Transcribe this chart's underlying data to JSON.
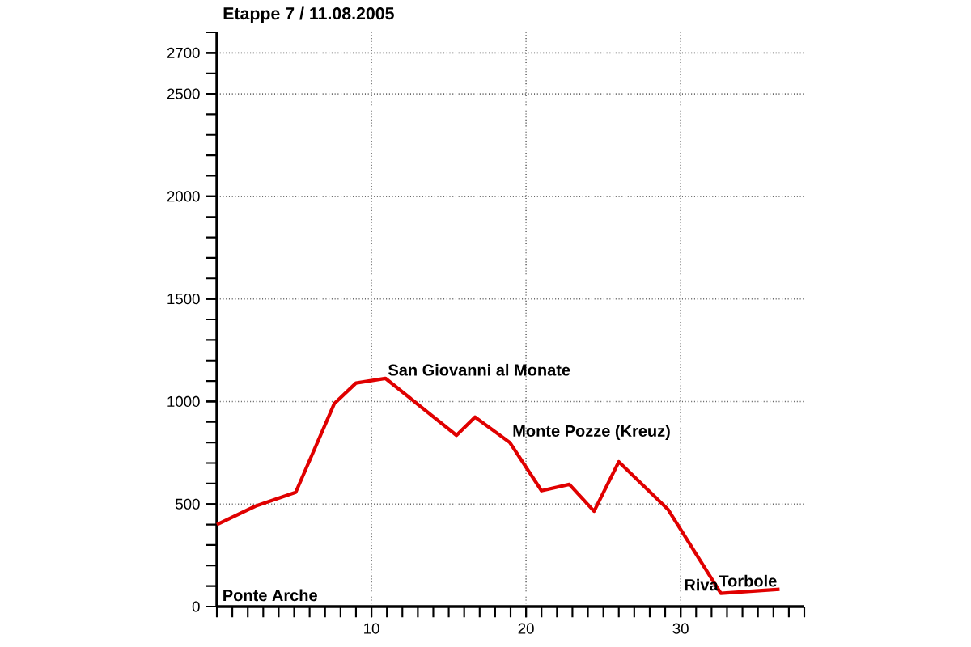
{
  "chart_data": {
    "type": "line",
    "title": "Etappe 7 / 11.08.2005",
    "x": [
      0,
      2.5,
      5.1,
      7.6,
      9.0,
      10.9,
      15.5,
      16.7,
      18.95,
      21.0,
      22.8,
      24.4,
      26.0,
      29.2,
      32.6,
      36.4
    ],
    "series": [
      {
        "color": "#e00000",
        "values": [
          400,
          490,
          557,
          990,
          1090,
          1113,
          835,
          924,
          800,
          565,
          596,
          465,
          706,
          472,
          65,
          84
        ]
      }
    ],
    "xlim": [
      0,
      38
    ],
    "ylim": [
      0,
      2800
    ],
    "xticks": [
      10,
      20,
      30
    ],
    "yticks": [
      0,
      500,
      1000,
      1500,
      2000,
      2500,
      2700
    ],
    "grid": true,
    "marker": "none",
    "line_style": "solid",
    "annotations": [
      "Ponte Arche",
      {
        "text": "San Giovanni al Monate",
        "x": 10.9,
        "y": 1113
      },
      {
        "text": "Monte Pozze (Kreuz)",
        "x": 18.95,
        "y": 800
      },
      {
        "text": "Riva",
        "x": 32.6,
        "y": 65
      },
      {
        "text": "Torbole",
        "x": 36.4,
        "y": 84
      }
    ]
  }
}
